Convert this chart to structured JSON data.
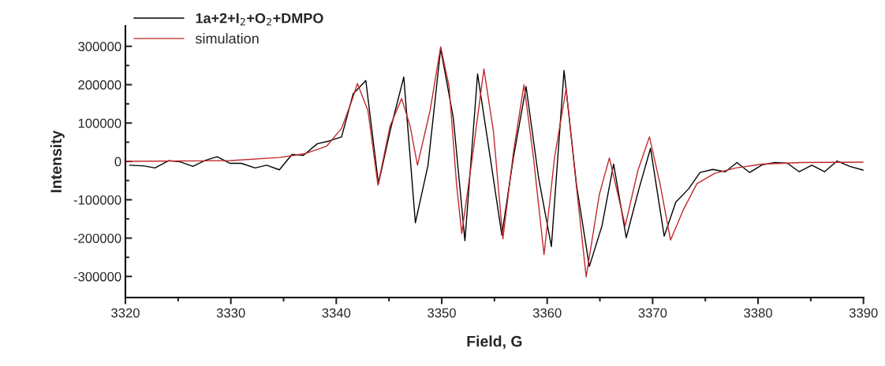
{
  "chart_data": {
    "type": "line",
    "xlabel": "Field, G",
    "ylabel": "Intensity",
    "xlim": [
      3320,
      3390
    ],
    "ylim": [
      -355000,
      353000
    ],
    "xticks": [
      3320,
      {
        "value": 3325,
        "label": null
      },
      3330,
      {
        "value": 3335,
        "label": null
      },
      3340,
      {
        "value": 3345,
        "label": null
      },
      3350,
      {
        "value": 3355,
        "label": null
      },
      3360,
      {
        "value": 3365,
        "label": null
      },
      3370,
      {
        "value": 3375,
        "label": null
      },
      3380,
      {
        "value": 3385,
        "label": null
      },
      3390
    ],
    "yticks": [
      -300000,
      {
        "value": -250000,
        "label": null
      },
      -200000,
      {
        "value": -150000,
        "label": null
      },
      -100000,
      {
        "value": -50000,
        "label": null
      },
      0,
      {
        "value": 50000,
        "label": null
      },
      100000,
      {
        "value": 150000,
        "label": null
      },
      200000,
      {
        "value": 250000,
        "label": null
      },
      300000
    ],
    "grid": false,
    "legend": "top left",
    "series": [
      {
        "name": "1a+2+I$_{2}$+O$_{2}$+DMPO",
        "color": "#000000",
        "x": [
          3320.4,
          3321.8,
          3322.8,
          3324.1,
          3325.2,
          3326.4,
          3327.6,
          3328.7,
          3329.9,
          3331.0,
          3332.3,
          3333.4,
          3334.6,
          3335.8,
          3336.9,
          3338.2,
          3339.3,
          3340.5,
          3341.6,
          3342.8,
          3344.0,
          3345.1,
          3346.4,
          3347.5,
          3348.7,
          3349.9,
          3351.1,
          3352.2,
          3353.4,
          3354.6,
          3355.7,
          3356.8,
          3358.0,
          3359.2,
          3360.4,
          3361.6,
          3362.8,
          3364.0,
          3365.2,
          3366.3,
          3367.5,
          3368.7,
          3369.8,
          3371.1,
          3372.2,
          3373.4,
          3374.5,
          3375.7,
          3376.9,
          3378.0,
          3379.2,
          3380.4,
          3381.6,
          3382.8,
          3383.9,
          3385.1,
          3386.3,
          3387.5,
          3388.7,
          3390.0
        ],
        "values": [
          -10000,
          -12000,
          -17000,
          2000,
          -1000,
          -13000,
          3000,
          12000,
          -5000,
          -5000,
          -17000,
          -10000,
          -22000,
          18000,
          16000,
          46000,
          53000,
          64000,
          176000,
          211000,
          -58000,
          79000,
          220000,
          -160000,
          -10000,
          294000,
          113000,
          -207000,
          228000,
          10000,
          -192000,
          10000,
          195000,
          -45000,
          -222000,
          237000,
          -65000,
          -274000,
          -168000,
          -7000,
          -199000,
          -72000,
          34000,
          -195000,
          -106000,
          -72000,
          -29000,
          -21000,
          -27000,
          -3000,
          -29000,
          -9000,
          -3000,
          -5000,
          -27000,
          -10000,
          -27000,
          1000,
          -13000,
          -23000
        ]
      },
      {
        "name": "simulation",
        "color": "#c0282d",
        "x": [
          3320,
          3325,
          3330,
          3334.6,
          3337,
          3339.1,
          3340.5,
          3341.5,
          3342.0,
          3343.0,
          3343.95,
          3345.1,
          3346.2,
          3347.0,
          3347.7,
          3348.9,
          3349.9,
          3350.7,
          3351.4,
          3351.9,
          3352.9,
          3354.0,
          3354.9,
          3355.8,
          3356.8,
          3357.8,
          3358.7,
          3359.7,
          3360.7,
          3361.8,
          3362.8,
          3363.7,
          3364.95,
          3365.9,
          3367.4,
          3368.6,
          3369.7,
          3370.7,
          3371.7,
          3372.9,
          3374.2,
          3375.9,
          3377.9,
          3380.4,
          3384.1,
          3390
        ],
        "values": [
          0,
          1000,
          2000,
          10000,
          20000,
          40000,
          86000,
          160000,
          203000,
          133000,
          -62000,
          92000,
          164000,
          92000,
          -10000,
          133000,
          299000,
          195000,
          -58000,
          -188000,
          10000,
          241000,
          79000,
          -202000,
          24000,
          200000,
          10000,
          -243000,
          10000,
          190000,
          -72000,
          -301000,
          -86000,
          9000,
          -168000,
          -24000,
          64000,
          -58000,
          -205000,
          -127000,
          -58000,
          -31000,
          -17000,
          -7000,
          -3000,
          -2000
        ]
      }
    ]
  }
}
